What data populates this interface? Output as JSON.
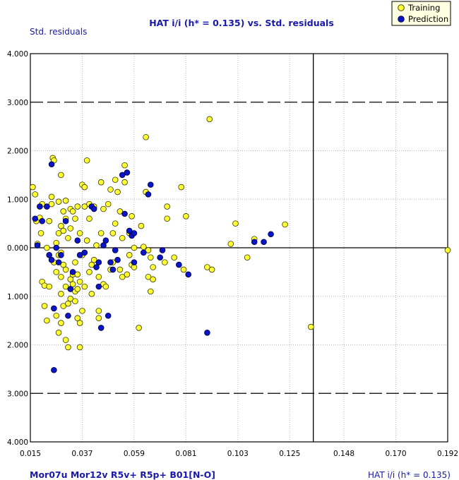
{
  "chart_data": {
    "type": "scatter",
    "title": "HAT i/i (h* = 0.135) vs. Std. residuals",
    "ylabel": "Std. residuals",
    "xlabel": "HAT i/i (h* = 0.135)",
    "descriptors": "Mor07u  Mor12v  R5v+  R5p+  B01[N-O]",
    "xlim": [
      0.015,
      0.192
    ],
    "ylim": [
      -4.0,
      4.0
    ],
    "x_ticks": [
      "0.015",
      "0.037",
      "0.059",
      "0.081",
      "0.103",
      "0.125",
      "0.148",
      "0.170",
      "0.192"
    ],
    "x_tick_values": [
      0.015,
      0.037,
      0.059,
      0.081,
      0.103,
      0.125,
      0.148,
      0.17,
      0.192
    ],
    "y_ticks": [
      "4.000",
      "3.000",
      "2.000",
      "1.000",
      "0.000",
      "1.000",
      "2.000",
      "3.000",
      "4.000"
    ],
    "y_tick_values": [
      4,
      3,
      2,
      1,
      0,
      -1,
      -2,
      -3,
      -4
    ],
    "h_star": 0.135,
    "residual_limits": [
      3,
      -3
    ],
    "legend": {
      "position": "top-right",
      "entries": [
        "Training",
        "Prediction"
      ]
    },
    "colors": {
      "training": "#ffff33",
      "prediction": "#0a14c8",
      "outline": "#333300",
      "title": "#1a1aa8"
    },
    "series": [
      {
        "name": "Training",
        "points": [
          [
            0.016,
            1.25
          ],
          [
            0.017,
            1.1
          ],
          [
            0.0175,
            0.55
          ],
          [
            0.018,
            0.08
          ],
          [
            0.019,
            0.62
          ],
          [
            0.0195,
            0.3
          ],
          [
            0.02,
            0.9
          ],
          [
            0.02,
            -0.7
          ],
          [
            0.021,
            -0.78
          ],
          [
            0.021,
            -1.2
          ],
          [
            0.022,
            -1.5
          ],
          [
            0.022,
            0.0
          ],
          [
            0.023,
            -0.8
          ],
          [
            0.023,
            0.55
          ],
          [
            0.024,
            0.9
          ],
          [
            0.024,
            1.05
          ],
          [
            0.0245,
            1.85
          ],
          [
            0.025,
            1.8
          ],
          [
            0.025,
            -0.3
          ],
          [
            0.026,
            0.1
          ],
          [
            0.026,
            -1.4
          ],
          [
            0.026,
            -0.5
          ],
          [
            0.027,
            -0.15
          ],
          [
            0.027,
            0.95
          ],
          [
            0.027,
            0.3
          ],
          [
            0.027,
            -1.75
          ],
          [
            0.028,
            1.5
          ],
          [
            0.028,
            -0.1
          ],
          [
            0.028,
            -0.6
          ],
          [
            0.028,
            -0.95
          ],
          [
            0.028,
            0.45
          ],
          [
            0.028,
            -1.55
          ],
          [
            0.029,
            0.75
          ],
          [
            0.029,
            -1.2
          ],
          [
            0.029,
            0.35
          ],
          [
            0.029,
            -0.35
          ],
          [
            0.03,
            0.97
          ],
          [
            0.03,
            0.6
          ],
          [
            0.03,
            -0.8
          ],
          [
            0.03,
            -1.9
          ],
          [
            0.03,
            -0.45
          ],
          [
            0.031,
            0.2
          ],
          [
            0.031,
            -1.15
          ],
          [
            0.031,
            -2.05
          ],
          [
            0.032,
            0.4
          ],
          [
            0.032,
            0.8
          ],
          [
            0.032,
            -0.65
          ],
          [
            0.032,
            -1.05
          ],
          [
            0.033,
            -0.55
          ],
          [
            0.033,
            0.75
          ],
          [
            0.033,
            -0.75
          ],
          [
            0.034,
            -0.3
          ],
          [
            0.034,
            -1.1
          ],
          [
            0.034,
            0.6
          ],
          [
            0.034,
            -0.9
          ],
          [
            0.035,
            0.85
          ],
          [
            0.035,
            -0.55
          ],
          [
            0.035,
            -0.85
          ],
          [
            0.035,
            -1.45
          ],
          [
            0.036,
            0.3
          ],
          [
            0.036,
            -1.55
          ],
          [
            0.036,
            -2.05
          ],
          [
            0.036,
            -0.7
          ],
          [
            0.037,
            -1.3
          ],
          [
            0.037,
            1.3
          ],
          [
            0.037,
            -0.15
          ],
          [
            0.038,
            0.85
          ],
          [
            0.038,
            -0.8
          ],
          [
            0.038,
            1.25
          ],
          [
            0.039,
            0.15
          ],
          [
            0.039,
            1.8
          ],
          [
            0.04,
            0.6
          ],
          [
            0.04,
            -0.5
          ],
          [
            0.04,
            0.9
          ],
          [
            0.041,
            -0.35
          ],
          [
            0.041,
            -0.95
          ],
          [
            0.042,
            0.85
          ],
          [
            0.042,
            -0.25
          ],
          [
            0.043,
            0.05
          ],
          [
            0.044,
            -0.6
          ],
          [
            0.044,
            -1.3
          ],
          [
            0.044,
            -1.45
          ],
          [
            0.045,
            1.35
          ],
          [
            0.045,
            0.3
          ],
          [
            0.046,
            0.8
          ],
          [
            0.046,
            -0.75
          ],
          [
            0.047,
            -0.8
          ],
          [
            0.048,
            0.9
          ],
          [
            0.049,
            1.2
          ],
          [
            0.049,
            -0.45
          ],
          [
            0.05,
            -0.3
          ],
          [
            0.05,
            0.3
          ],
          [
            0.051,
            1.4
          ],
          [
            0.051,
            0.5
          ],
          [
            0.052,
            1.15
          ],
          [
            0.053,
            0.75
          ],
          [
            0.053,
            -0.45
          ],
          [
            0.054,
            0.2
          ],
          [
            0.054,
            -0.6
          ],
          [
            0.055,
            1.7
          ],
          [
            0.055,
            1.35
          ],
          [
            0.056,
            -0.55
          ],
          [
            0.057,
            -0.15
          ],
          [
            0.057,
            0.3
          ],
          [
            0.058,
            0.65
          ],
          [
            0.058,
            -0.35
          ],
          [
            0.059,
            0.0
          ],
          [
            0.059,
            -0.4
          ],
          [
            0.061,
            -1.65
          ],
          [
            0.062,
            0.45
          ],
          [
            0.063,
            0.02
          ],
          [
            0.064,
            2.28
          ],
          [
            0.064,
            1.15
          ],
          [
            0.065,
            -0.05
          ],
          [
            0.065,
            -0.6
          ],
          [
            0.066,
            -0.2
          ],
          [
            0.066,
            -0.9
          ],
          [
            0.067,
            -0.4
          ],
          [
            0.067,
            -0.65
          ],
          [
            0.072,
            -0.3
          ],
          [
            0.073,
            0.85
          ],
          [
            0.073,
            0.6
          ],
          [
            0.076,
            -0.2
          ],
          [
            0.079,
            1.25
          ],
          [
            0.08,
            -0.45
          ],
          [
            0.081,
            0.65
          ],
          [
            0.09,
            -0.4
          ],
          [
            0.091,
            2.65
          ],
          [
            0.092,
            -0.45
          ],
          [
            0.1,
            0.08
          ],
          [
            0.102,
            0.5
          ],
          [
            0.107,
            -0.2
          ],
          [
            0.11,
            0.18
          ],
          [
            0.123,
            0.48
          ],
          [
            0.134,
            -1.63
          ],
          [
            0.192,
            -0.05
          ]
        ]
      },
      {
        "name": "Prediction",
        "points": [
          [
            0.017,
            0.6
          ],
          [
            0.018,
            0.05
          ],
          [
            0.019,
            0.85
          ],
          [
            0.02,
            0.55
          ],
          [
            0.022,
            0.85
          ],
          [
            0.023,
            -0.15
          ],
          [
            0.024,
            1.72
          ],
          [
            0.024,
            -0.25
          ],
          [
            0.025,
            -1.25
          ],
          [
            0.025,
            -2.52
          ],
          [
            0.026,
            0.0
          ],
          [
            0.027,
            -0.3
          ],
          [
            0.028,
            -0.15
          ],
          [
            0.03,
            0.55
          ],
          [
            0.031,
            -1.4
          ],
          [
            0.032,
            -0.85
          ],
          [
            0.033,
            -0.5
          ],
          [
            0.035,
            0.15
          ],
          [
            0.036,
            -0.15
          ],
          [
            0.038,
            -0.1
          ],
          [
            0.041,
            0.85
          ],
          [
            0.042,
            0.8
          ],
          [
            0.043,
            -0.4
          ],
          [
            0.044,
            -0.8
          ],
          [
            0.044,
            -0.3
          ],
          [
            0.045,
            -1.65
          ],
          [
            0.046,
            0.05
          ],
          [
            0.047,
            0.15
          ],
          [
            0.048,
            -1.4
          ],
          [
            0.049,
            -0.3
          ],
          [
            0.05,
            -0.45
          ],
          [
            0.051,
            -0.05
          ],
          [
            0.052,
            -0.25
          ],
          [
            0.054,
            1.5
          ],
          [
            0.055,
            0.7
          ],
          [
            0.056,
            1.55
          ],
          [
            0.057,
            0.35
          ],
          [
            0.058,
            0.25
          ],
          [
            0.059,
            0.3
          ],
          [
            0.059,
            -0.3
          ],
          [
            0.063,
            -0.1
          ],
          [
            0.065,
            1.1
          ],
          [
            0.066,
            1.3
          ],
          [
            0.07,
            -0.2
          ],
          [
            0.071,
            -0.05
          ],
          [
            0.078,
            -0.35
          ],
          [
            0.082,
            -0.55
          ],
          [
            0.09,
            -1.75
          ],
          [
            0.11,
            0.12
          ],
          [
            0.114,
            0.12
          ],
          [
            0.117,
            0.28
          ]
        ]
      }
    ]
  }
}
